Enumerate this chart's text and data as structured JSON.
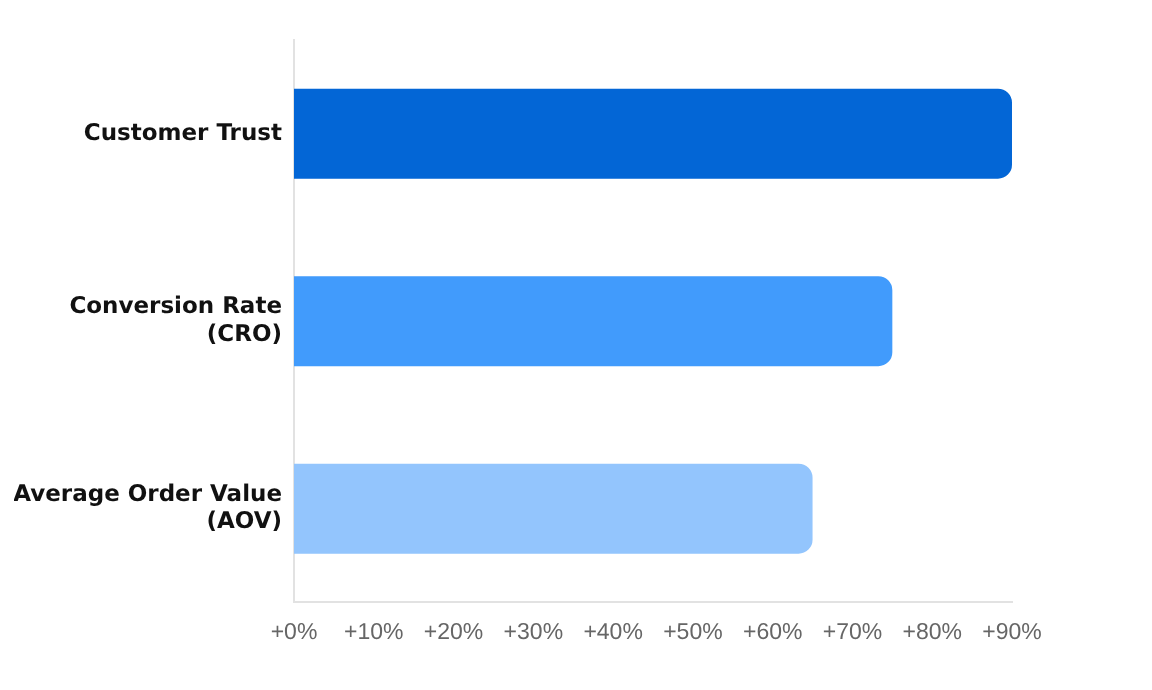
{
  "chart_data": {
    "type": "bar",
    "orientation": "horizontal",
    "categories": [
      "Customer Trust",
      "Conversion Rate\n(CRO)",
      "Average Order Value\n(AOV)"
    ],
    "values": [
      90,
      75,
      65
    ],
    "colors": [
      "#0366d6",
      "#419bfc",
      "#93c5fd"
    ],
    "xlim": [
      0,
      90
    ],
    "xticks": [
      {
        "value": 0,
        "label": "+0%"
      },
      {
        "value": 10,
        "label": "+10%"
      },
      {
        "value": 20,
        "label": "+20%"
      },
      {
        "value": 30,
        "label": "+30%"
      },
      {
        "value": 40,
        "label": "+40%"
      },
      {
        "value": 50,
        "label": "+50%"
      },
      {
        "value": 60,
        "label": "+60%"
      },
      {
        "value": 70,
        "label": "+70%"
      },
      {
        "value": 80,
        "label": "+80%"
      },
      {
        "value": 90,
        "label": "+90%"
      }
    ],
    "grid": false,
    "legend": false
  }
}
